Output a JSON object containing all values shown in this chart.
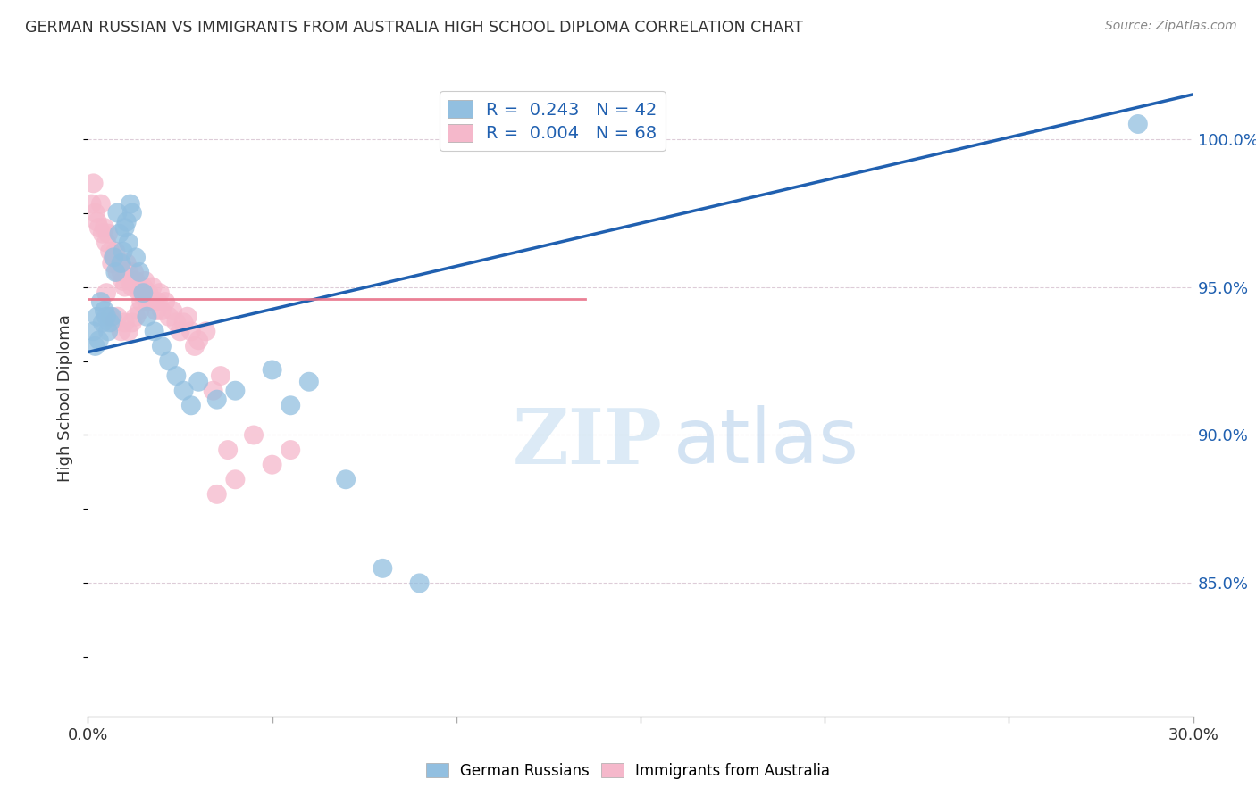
{
  "title": "GERMAN RUSSIAN VS IMMIGRANTS FROM AUSTRALIA HIGH SCHOOL DIPLOMA CORRELATION CHART",
  "source": "Source: ZipAtlas.com",
  "ylabel": "High School Diploma",
  "ytick_vals": [
    85.0,
    90.0,
    95.0,
    100.0
  ],
  "xmin": 0.0,
  "xmax": 30.0,
  "ymin": 80.5,
  "ymax": 102.0,
  "blue_R": "0.243",
  "blue_N": "42",
  "pink_R": "0.004",
  "pink_N": "68",
  "blue_color": "#92bfe0",
  "pink_color": "#f5b8cb",
  "blue_line_color": "#2060b0",
  "pink_line_color": "#e8728a",
  "watermark_zip": "ZIP",
  "watermark_atlas": "atlas",
  "blue_scatter_x": [
    0.15,
    0.2,
    0.25,
    0.3,
    0.35,
    0.4,
    0.45,
    0.5,
    0.55,
    0.6,
    0.65,
    0.7,
    0.75,
    0.8,
    0.85,
    0.9,
    0.95,
    1.0,
    1.05,
    1.1,
    1.15,
    1.2,
    1.3,
    1.4,
    1.5,
    1.6,
    1.8,
    2.0,
    2.2,
    2.4,
    2.6,
    2.8,
    3.0,
    3.5,
    4.0,
    5.0,
    5.5,
    6.0,
    7.0,
    8.0,
    9.0,
    28.5
  ],
  "blue_scatter_y": [
    93.5,
    93.0,
    94.0,
    93.2,
    94.5,
    93.8,
    94.2,
    94.0,
    93.5,
    93.8,
    94.0,
    96.0,
    95.5,
    97.5,
    96.8,
    95.8,
    96.2,
    97.0,
    97.2,
    96.5,
    97.8,
    97.5,
    96.0,
    95.5,
    94.8,
    94.0,
    93.5,
    93.0,
    92.5,
    92.0,
    91.5,
    91.0,
    91.8,
    91.2,
    91.5,
    92.2,
    91.0,
    91.8,
    88.5,
    85.5,
    85.0,
    100.5
  ],
  "pink_scatter_x": [
    0.1,
    0.15,
    0.2,
    0.25,
    0.3,
    0.35,
    0.4,
    0.45,
    0.5,
    0.55,
    0.6,
    0.65,
    0.7,
    0.75,
    0.8,
    0.85,
    0.9,
    0.95,
    1.0,
    1.05,
    1.1,
    1.15,
    1.2,
    1.25,
    1.3,
    1.35,
    1.4,
    1.45,
    1.5,
    1.55,
    1.6,
    1.65,
    1.7,
    1.75,
    1.8,
    1.85,
    1.9,
    1.95,
    2.0,
    2.1,
    2.2,
    2.3,
    2.4,
    2.5,
    2.6,
    2.7,
    2.8,
    2.9,
    3.0,
    3.2,
    3.4,
    3.6,
    3.8,
    4.0,
    4.5,
    5.0,
    0.5,
    0.6,
    0.7,
    0.8,
    0.9,
    1.0,
    1.1,
    1.2,
    1.3,
    1.4,
    3.5,
    5.5
  ],
  "pink_scatter_y": [
    97.8,
    98.5,
    97.5,
    97.2,
    97.0,
    97.8,
    96.8,
    97.0,
    96.5,
    96.8,
    96.2,
    95.8,
    96.0,
    96.2,
    95.5,
    95.8,
    95.5,
    95.2,
    95.0,
    95.8,
    95.5,
    95.2,
    95.0,
    95.5,
    95.2,
    95.0,
    94.8,
    94.5,
    95.0,
    95.2,
    94.5,
    94.8,
    94.5,
    95.0,
    94.5,
    94.2,
    94.5,
    94.8,
    94.2,
    94.5,
    94.0,
    94.2,
    93.8,
    93.5,
    93.8,
    94.0,
    93.5,
    93.0,
    93.2,
    93.5,
    91.5,
    92.0,
    89.5,
    88.5,
    90.0,
    89.0,
    94.8,
    94.0,
    93.8,
    94.0,
    93.5,
    93.8,
    93.5,
    93.8,
    94.0,
    94.2,
    88.0,
    89.5
  ],
  "blue_line_x": [
    0.0,
    30.0
  ],
  "blue_line_y": [
    92.8,
    101.5
  ],
  "pink_line_x": [
    0.0,
    13.5
  ],
  "pink_line_y": [
    94.6,
    94.6
  ]
}
